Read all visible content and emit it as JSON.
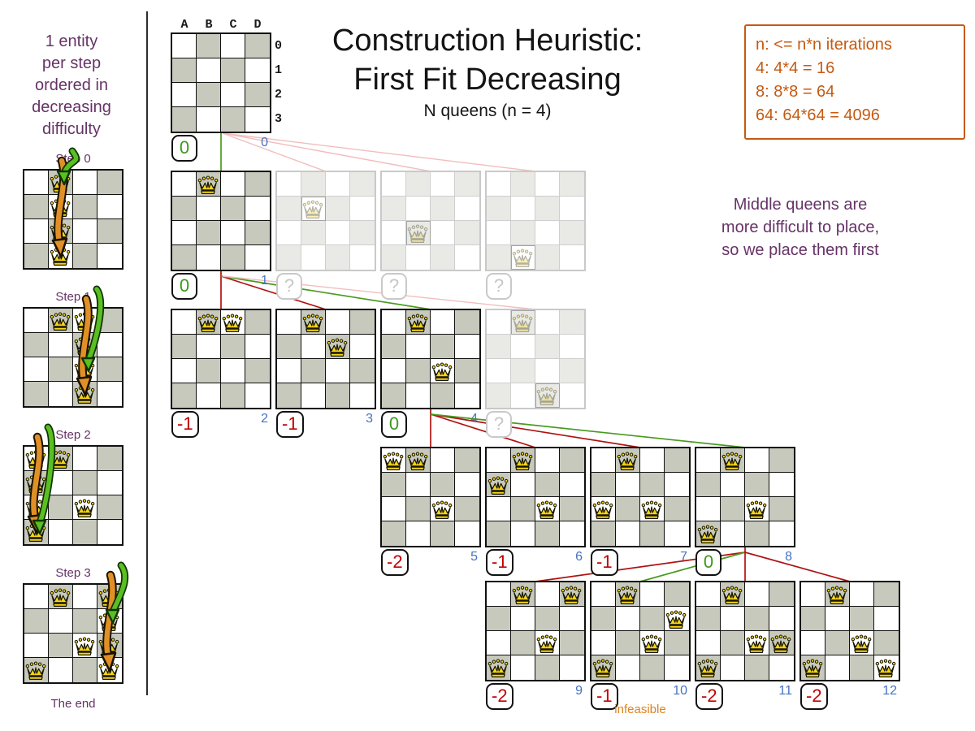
{
  "header": {
    "title_line1": "Construction Heuristic:",
    "title_line2": "First Fit Decreasing",
    "subtitle": "N queens (n = 4)"
  },
  "note_box": {
    "text": "n: <= n*n iterations\n4: 4*4 = 16\n8: 8*8 = 64\n64: 64*64 = 4096"
  },
  "annotation": {
    "text": "Middle queens are\nmore difficult to place,\nso we place them first"
  },
  "sidebar": {
    "intro": "1 entity\nper step\nordered in\ndecreasing\ndifficulty",
    "end_label": "The end",
    "steps": [
      {
        "label": "Step 0",
        "fixed_queens": [],
        "scan_col": 1,
        "selected_row": 0
      },
      {
        "label": "Step 1",
        "fixed_queens": [
          [
            1,
            0
          ]
        ],
        "scan_col": 2,
        "selected_row": 2
      },
      {
        "label": "Step 2",
        "fixed_queens": [
          [
            1,
            0
          ],
          [
            2,
            2
          ]
        ],
        "scan_col": 0,
        "selected_row": 3
      },
      {
        "label": "Step 3",
        "fixed_queens": [
          [
            1,
            0
          ],
          [
            2,
            2
          ],
          [
            0,
            3
          ]
        ],
        "scan_col": 3,
        "selected_row": 1
      }
    ]
  },
  "root_board": {
    "col_labels": [
      "A",
      "B",
      "C",
      "D"
    ],
    "row_labels": [
      "0",
      "1",
      "2",
      "3"
    ]
  },
  "boards": [
    {
      "id": "root",
      "level": 0,
      "slot": 0,
      "queens": [],
      "score": "0",
      "score_type": "green",
      "iteration": "0",
      "labels": true
    },
    {
      "id": "n1a",
      "level": 1,
      "slot": 0,
      "queens": [
        [
          1,
          0
        ]
      ],
      "score": "0",
      "score_type": "green",
      "iteration": "1"
    },
    {
      "id": "n1b",
      "level": 1,
      "slot": 1,
      "faded": true,
      "queens": [
        [
          1,
          1
        ]
      ],
      "score": "?",
      "score_type": "unknown"
    },
    {
      "id": "n1c",
      "level": 1,
      "slot": 2,
      "faded": true,
      "queens": [
        [
          1,
          2
        ]
      ],
      "score": "?",
      "score_type": "unknown"
    },
    {
      "id": "n1d",
      "level": 1,
      "slot": 3,
      "faded": true,
      "queens": [
        [
          1,
          3
        ]
      ],
      "score": "?",
      "score_type": "unknown"
    },
    {
      "id": "n2a",
      "level": 2,
      "slot": 0,
      "queens": [
        [
          1,
          0
        ],
        [
          2,
          0
        ]
      ],
      "score": "-1",
      "score_type": "red",
      "iteration": "2"
    },
    {
      "id": "n2b",
      "level": 2,
      "slot": 1,
      "queens": [
        [
          1,
          0
        ],
        [
          2,
          1
        ]
      ],
      "score": "-1",
      "score_type": "red",
      "iteration": "3"
    },
    {
      "id": "n2c",
      "level": 2,
      "slot": 2,
      "queens": [
        [
          1,
          0
        ],
        [
          2,
          2
        ]
      ],
      "score": "0",
      "score_type": "green",
      "iteration": "4"
    },
    {
      "id": "n2d",
      "level": 2,
      "slot": 3,
      "faded": true,
      "queens": [
        [
          1,
          0
        ],
        [
          2,
          3
        ]
      ],
      "score": "?",
      "score_type": "unknown"
    },
    {
      "id": "n3a",
      "level": 3,
      "slot": 2,
      "queens": [
        [
          0,
          0
        ],
        [
          1,
          0
        ],
        [
          2,
          2
        ]
      ],
      "score": "-2",
      "score_type": "red",
      "iteration": "5"
    },
    {
      "id": "n3b",
      "level": 3,
      "slot": 3,
      "queens": [
        [
          1,
          0
        ],
        [
          0,
          1
        ],
        [
          2,
          2
        ]
      ],
      "score": "-1",
      "score_type": "red",
      "iteration": "6"
    },
    {
      "id": "n3c",
      "level": 3,
      "slot": 4,
      "queens": [
        [
          1,
          0
        ],
        [
          0,
          2
        ],
        [
          2,
          2
        ]
      ],
      "score": "-1",
      "score_type": "red",
      "iteration": "7"
    },
    {
      "id": "n3d",
      "level": 3,
      "slot": 5,
      "queens": [
        [
          1,
          0
        ],
        [
          2,
          2
        ],
        [
          0,
          3
        ]
      ],
      "score": "0",
      "score_type": "green",
      "iteration": "8"
    },
    {
      "id": "n4a",
      "level": 4,
      "slot": 3,
      "queens": [
        [
          1,
          0
        ],
        [
          3,
          0
        ],
        [
          2,
          2
        ],
        [
          0,
          3
        ]
      ],
      "score": "-2",
      "score_type": "red",
      "iteration": "9"
    },
    {
      "id": "n4b",
      "level": 4,
      "slot": 4,
      "queens": [
        [
          1,
          0
        ],
        [
          3,
          1
        ],
        [
          2,
          2
        ],
        [
          0,
          3
        ]
      ],
      "score": "-1",
      "score_type": "red",
      "iteration": "10",
      "note": "infeasible"
    },
    {
      "id": "n4c",
      "level": 4,
      "slot": 5,
      "queens": [
        [
          1,
          0
        ],
        [
          2,
          2
        ],
        [
          3,
          2
        ],
        [
          0,
          3
        ]
      ],
      "score": "-2",
      "score_type": "red",
      "iteration": "11"
    },
    {
      "id": "n4d",
      "level": 4,
      "slot": 6,
      "queens": [
        [
          1,
          0
        ],
        [
          2,
          2
        ],
        [
          0,
          3
        ],
        [
          3,
          3
        ]
      ],
      "score": "-2",
      "score_type": "red",
      "iteration": "12"
    }
  ],
  "edges": [
    {
      "from": "root",
      "to": "n1a",
      "color": "green"
    },
    {
      "from": "root",
      "to": "n1b",
      "color": "pink"
    },
    {
      "from": "root",
      "to": "n1c",
      "color": "pink"
    },
    {
      "from": "root",
      "to": "n1d",
      "color": "pink"
    },
    {
      "from": "n1a",
      "to": "n2a",
      "color": "red"
    },
    {
      "from": "n1a",
      "to": "n2b",
      "color": "red"
    },
    {
      "from": "n1a",
      "to": "n2c",
      "color": "green"
    },
    {
      "from": "n1a",
      "to": "n2d",
      "color": "pink"
    },
    {
      "from": "n2c",
      "to": "n3a",
      "color": "red"
    },
    {
      "from": "n2c",
      "to": "n3b",
      "color": "red"
    },
    {
      "from": "n2c",
      "to": "n3c",
      "color": "red"
    },
    {
      "from": "n2c",
      "to": "n3d",
      "color": "green"
    },
    {
      "from": "n3d",
      "to": "n4a",
      "color": "red"
    },
    {
      "from": "n3d",
      "to": "n4b",
      "color": "green"
    },
    {
      "from": "n3d",
      "to": "n4c",
      "color": "red"
    },
    {
      "from": "n3d",
      "to": "n4d",
      "color": "red"
    }
  ],
  "colors": {
    "purple": "#663366",
    "orange": "#c55a11",
    "orange_light": "#e0821e",
    "score_green": "#3a9a1a",
    "score_red": "#c00000",
    "line_green": "#4a9a1f",
    "line_red": "#b01212",
    "line_pink": "#f2bdbd",
    "iteration_blue": "#4472c4",
    "cell_gray": "#c6c9bc"
  }
}
